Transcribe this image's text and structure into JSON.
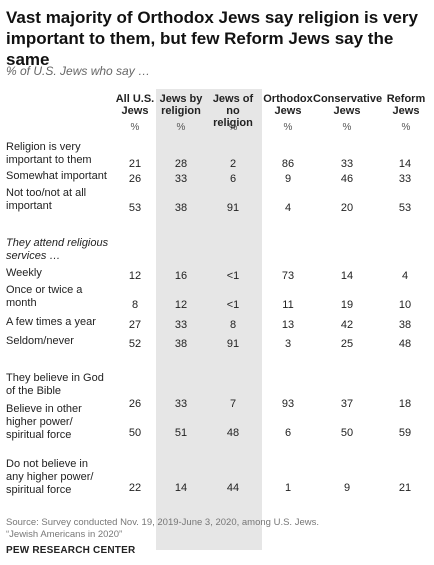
{
  "title": "Vast majority of Orthodox Jews say religion is very important to them, but few Reform Jews say the same",
  "subtitle": "% of U.S. Jews who say …",
  "columns": [
    {
      "label": "All U.S. Jews",
      "unit": "%"
    },
    {
      "label": "Jews by religion",
      "unit": "%"
    },
    {
      "label": "Jews of no religion",
      "unit": "%"
    },
    {
      "label": "Orthodox Jews",
      "unit": "%"
    },
    {
      "label": "Conservative Jews",
      "unit": "%"
    },
    {
      "label": "Reform Jews",
      "unit": "%"
    }
  ],
  "sections": [
    {
      "heading": "",
      "rows": [
        {
          "label": "Religion is very important to them",
          "values": [
            "21",
            "28",
            "2",
            "86",
            "33",
            "14"
          ]
        },
        {
          "label": "Somewhat important",
          "values": [
            "26",
            "33",
            "6",
            "9",
            "46",
            "33"
          ]
        },
        {
          "label": "Not too/not at all important",
          "values": [
            "53",
            "38",
            "91",
            "4",
            "20",
            "53"
          ]
        }
      ]
    },
    {
      "heading": "They attend religious services …",
      "rows": [
        {
          "label": "Weekly",
          "values": [
            "12",
            "16",
            "<1",
            "73",
            "14",
            "4"
          ]
        },
        {
          "label": "Once or twice a month",
          "values": [
            "8",
            "12",
            "<1",
            "11",
            "19",
            "10"
          ]
        },
        {
          "label": "A few times a year",
          "values": [
            "27",
            "33",
            "8",
            "13",
            "42",
            "38"
          ]
        },
        {
          "label": "Seldom/never",
          "values": [
            "52",
            "38",
            "91",
            "3",
            "25",
            "48"
          ]
        }
      ]
    },
    {
      "heading": "",
      "rows": [
        {
          "label": "They believe in God of the Bible",
          "values": [
            "26",
            "33",
            "7",
            "93",
            "37",
            "18"
          ]
        },
        {
          "label": "Believe in other higher power/ spiritual force",
          "values": [
            "50",
            "51",
            "48",
            "6",
            "50",
            "59"
          ]
        },
        {
          "label": "Do not believe in any higher power/ spiritual force",
          "values": [
            "22",
            "14",
            "44",
            "1",
            "9",
            "21"
          ]
        }
      ]
    }
  ],
  "source": "Source: Survey conducted Nov. 19, 2019-June 3, 2020, among U.S. Jews.",
  "report": "“Jewish Americans in 2020”",
  "org": "PEW RESEARCH CENTER",
  "colors": {
    "shade": "#e6e6e6",
    "text": "#222222",
    "muted": "#777777"
  }
}
